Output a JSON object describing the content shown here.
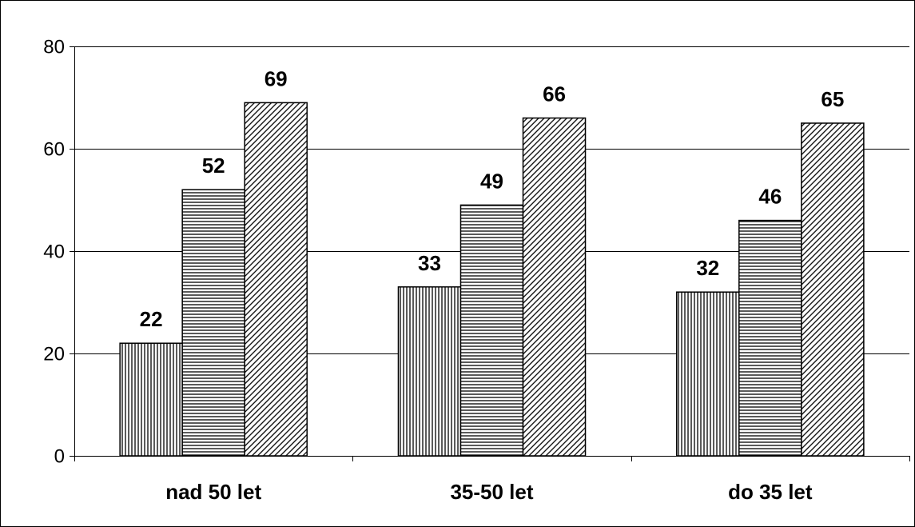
{
  "chart_data": {
    "type": "bar",
    "title": "",
    "xlabel": "",
    "ylabel": "",
    "categories": [
      "nad 50 let",
      "35-50 let",
      "do 35 let"
    ],
    "series": [
      {
        "values": [
          22,
          33,
          32
        ],
        "pattern": "vertical-lines"
      },
      {
        "values": [
          52,
          49,
          46
        ],
        "pattern": "horizontal-lines"
      },
      {
        "values": [
          69,
          66,
          65
        ],
        "pattern": "diagonal-lines"
      }
    ],
    "ylim": [
      0,
      80
    ],
    "yticks": [
      0,
      20,
      40,
      60,
      80
    ],
    "grid": true,
    "legend": "none",
    "data_labels": true
  }
}
